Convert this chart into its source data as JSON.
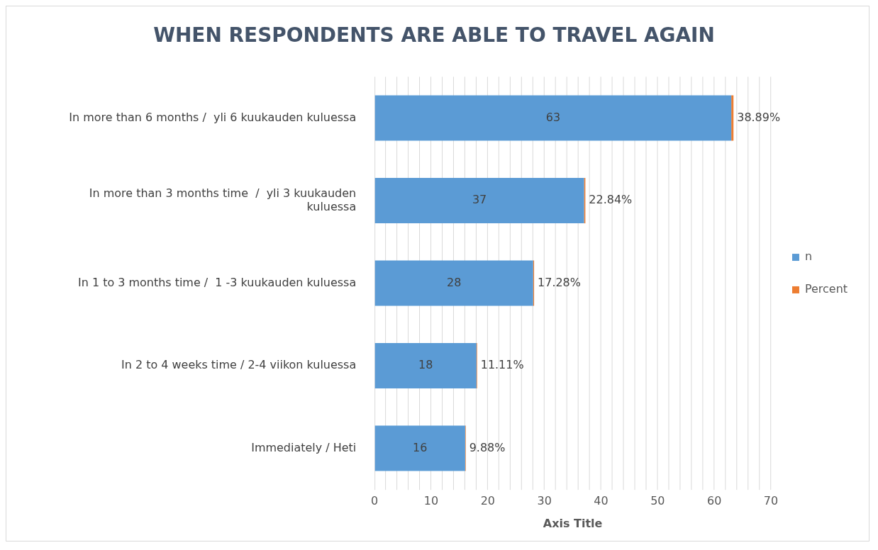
{
  "chart_data": {
    "type": "bar",
    "orientation": "horizontal",
    "stacked": true,
    "title": "WHEN RESPONDENTS ARE ABLE TO TRAVEL AGAIN",
    "xlabel": "Axis Title",
    "categories": [
      "In more than 6 months /  yli 6 kuukauden kuluessa",
      "In more than 3 months time  /  yli 3 kuukauden kuluessa",
      "In 1 to 3 months time /  1 -3 kuukauden kuluessa",
      "In 2 to 4 weeks time / 2-4 viikon kuluessa",
      "Immediately / Heti"
    ],
    "series": [
      {
        "name": "n",
        "color": "#5b9bd5",
        "values": [
          63,
          37,
          28,
          18,
          16
        ],
        "value_labels": [
          "63",
          "37",
          "28",
          "18",
          "16"
        ]
      },
      {
        "name": "Percent",
        "color": "#ed7d31",
        "values": [
          0.3889,
          0.2284,
          0.1728,
          0.1111,
          0.0988
        ],
        "value_labels": [
          "38.89%",
          "22.84%",
          "17.28%",
          "11.11%",
          "9.88%"
        ]
      }
    ],
    "xlim": [
      0,
      70
    ],
    "xticks": [
      0,
      {
        "value": 2,
        "label": null
      },
      {
        "value": 4,
        "label": null
      },
      {
        "value": 6,
        "label": null
      },
      {
        "value": 8,
        "label": null
      },
      10,
      {
        "value": 12,
        "label": null
      },
      {
        "value": 14,
        "label": null
      },
      {
        "value": 16,
        "label": null
      },
      {
        "value": 18,
        "label": null
      },
      20,
      {
        "value": 22,
        "label": null
      },
      {
        "value": 24,
        "label": null
      },
      {
        "value": 26,
        "label": null
      },
      {
        "value": 28,
        "label": null
      },
      30,
      {
        "value": 32,
        "label": null
      },
      {
        "value": 34,
        "label": null
      },
      {
        "value": 36,
        "label": null
      },
      {
        "value": 38,
        "label": null
      },
      40,
      {
        "value": 42,
        "label": null
      },
      {
        "value": 44,
        "label": null
      },
      {
        "value": 46,
        "label": null
      },
      {
        "value": 48,
        "label": null
      },
      50,
      {
        "value": 52,
        "label": null
      },
      {
        "value": 54,
        "label": null
      },
      {
        "value": 56,
        "label": null
      },
      {
        "value": 58,
        "label": null
      },
      60,
      {
        "value": 62,
        "label": null
      },
      {
        "value": 64,
        "label": null
      },
      {
        "value": 66,
        "label": null
      },
      {
        "value": 68,
        "label": null
      },
      70
    ],
    "grid": "x",
    "legend": "right"
  }
}
